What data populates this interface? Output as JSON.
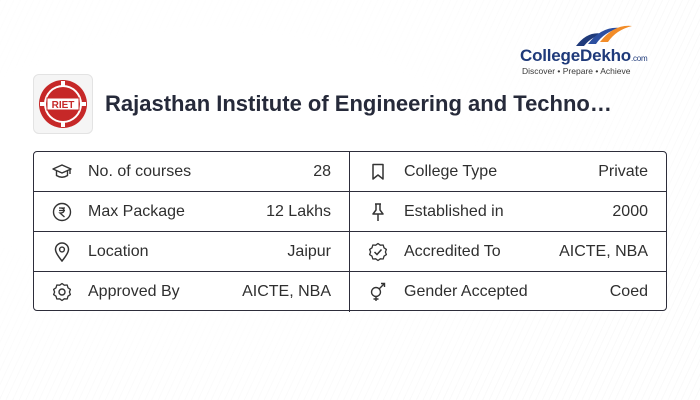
{
  "brand": {
    "name": "CollegeDekho",
    "domain_suffix": ".com",
    "tagline": "Discover • Prepare • Achieve"
  },
  "college": {
    "logo_text": "RIET",
    "name": "Rajasthan Institute of Engineering and Techno…"
  },
  "info": {
    "courses": {
      "icon": "graduation-cap-icon",
      "label": "No. of courses",
      "value": "28"
    },
    "college_type": {
      "icon": "bookmark-icon",
      "label": "College Type",
      "value": "Private"
    },
    "max_package": {
      "icon": "rupee-icon",
      "label": "Max Package",
      "value": "12 Lakhs"
    },
    "established": {
      "icon": "pin-icon",
      "label": "Established in",
      "value": "2000"
    },
    "location": {
      "icon": "location-icon",
      "label": "Location",
      "value": "Jaipur"
    },
    "accredited": {
      "icon": "verified-badge-icon",
      "label": "Accredited To",
      "value": "AICTE, NBA"
    },
    "approved": {
      "icon": "approved-seal-icon",
      "label": "Approved By",
      "value": "AICTE, NBA"
    },
    "gender": {
      "icon": "gender-icon",
      "label": "Gender Accepted",
      "value": "Coed"
    }
  },
  "colors": {
    "brand_blue": "#1f3a7a",
    "logo_red": "#c62828",
    "border": "#2d2d3a"
  }
}
